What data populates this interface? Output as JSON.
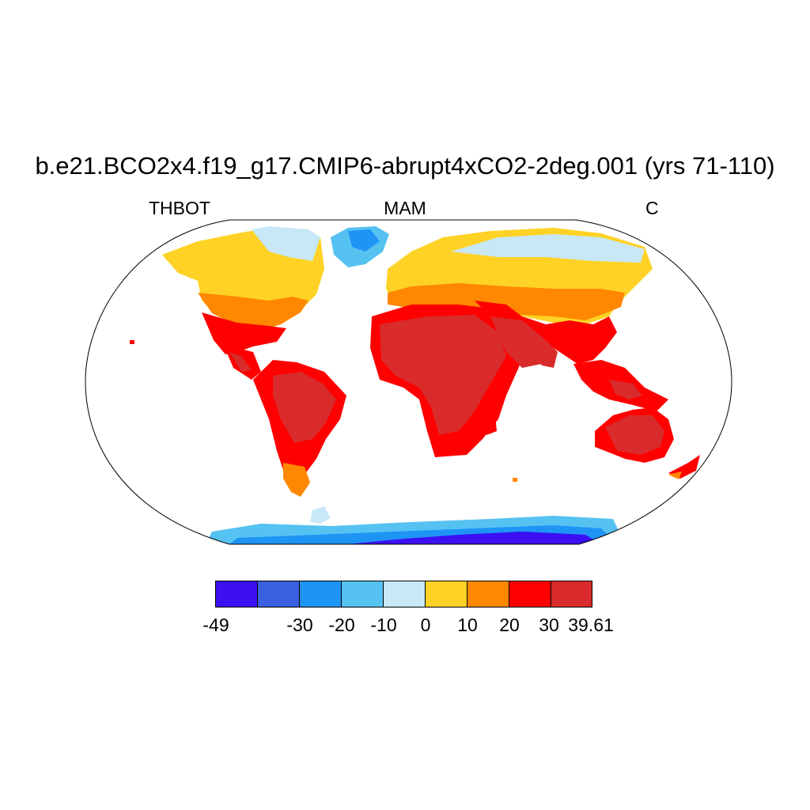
{
  "title": "b.e21.BCO2x4.f19_g17.CMIP6-abrupt4xCO2-2deg.001 (yrs 71-110)",
  "variable": "THBOT",
  "season": "MAM",
  "units": "C",
  "colorbar": {
    "colors": [
      "#3c10f2",
      "#3a5fe0",
      "#1e94f5",
      "#55c2f2",
      "#c8e8f8",
      "#ffd225",
      "#ff8800",
      "#ff0000",
      "#d92b2b"
    ],
    "labels": [
      "-49",
      "-30",
      "-20",
      "-10",
      "0",
      "10",
      "20",
      "30",
      "39.61"
    ]
  }
}
